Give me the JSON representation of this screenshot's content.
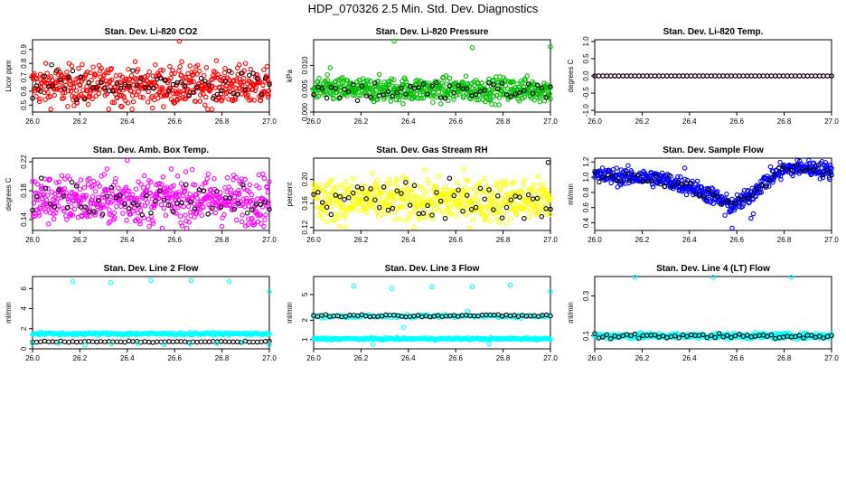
{
  "figure": {
    "title": "HDP_070326  2.5 Min. Std. Dev. Diagnostics"
  },
  "colors": {
    "co2": "#ff0000",
    "pressure": "#00c000",
    "temp": "#ff00ff",
    "box": "#ff00ff",
    "rh": "#ffff00",
    "flow": "#0000ff",
    "line": "#00ffff",
    "overlay": "#000000"
  },
  "chart_data": [
    {
      "type": "scatter",
      "title": "Stan. Dev. Li-820 CO2",
      "ylabel": "Licor ppm",
      "xlim": [
        26.0,
        27.0
      ],
      "ylim": [
        0.45,
        0.97
      ],
      "xticks": [
        "26.0",
        "26.2",
        "26.4",
        "26.6",
        "26.8",
        "27.0"
      ],
      "yticks": [
        {
          "v": 0.5,
          "label": "0.5"
        },
        {
          "v": 0.6,
          "label": "0.6"
        },
        {
          "v": 0.7,
          "label": "0.7"
        },
        {
          "v": 0.8,
          "label": "0.8"
        },
        {
          "v": 0.9,
          "label": "0.9"
        }
      ],
      "series": [
        {
          "name": "main",
          "color_key": "co2",
          "style": "noise",
          "n": 520,
          "center": 0.64,
          "spread": 0.07,
          "min": 0.47,
          "max": 0.88,
          "points": [
            {
              "x": 26.62,
              "y": 0.96
            }
          ]
        },
        {
          "name": "overlay",
          "color_key": "overlay",
          "style": "noise",
          "n": 60,
          "center": 0.64,
          "spread": 0.05,
          "min": 0.52,
          "max": 0.8,
          "points": [
            {
              "x": 26.08,
              "y": 0.79
            }
          ]
        }
      ]
    },
    {
      "type": "scatter",
      "title": "Stan. Dev. Li-820 Pressure",
      "ylabel": "kPa",
      "xlim": [
        26.0,
        27.0
      ],
      "ylim": [
        0.0,
        0.0155
      ],
      "xticks": [
        "26.0",
        "26.2",
        "26.4",
        "26.6",
        "26.8",
        "27.0"
      ],
      "yticks": [
        {
          "v": 0.0,
          "label": "0.000"
        },
        {
          "v": 0.005,
          "label": "0.005"
        },
        {
          "v": 0.01,
          "label": "0.010"
        }
      ],
      "series": [
        {
          "name": "main",
          "color_key": "pressure",
          "style": "noise",
          "n": 520,
          "center": 0.0048,
          "spread": 0.0013,
          "min": 0.0003,
          "max": 0.0085,
          "points": [
            {
              "x": 26.34,
              "y": 0.0152
            },
            {
              "x": 26.67,
              "y": 0.0138
            },
            {
              "x": 27.0,
              "y": 0.014
            },
            {
              "x": 26.07,
              "y": 0.0095
            }
          ]
        },
        {
          "name": "overlay",
          "color_key": "overlay",
          "style": "noise",
          "n": 55,
          "center": 0.0045,
          "spread": 0.0012,
          "min": 0.0005,
          "max": 0.0075,
          "points": []
        }
      ]
    },
    {
      "type": "scatter",
      "title": "Stan. Dev. Li-820 Temp.",
      "ylabel": "degrees C",
      "xlim": [
        26.0,
        27.0
      ],
      "ylim": [
        -1.05,
        1.05
      ],
      "xticks": [
        "26.0",
        "26.2",
        "26.4",
        "26.6",
        "26.8",
        "27.0"
      ],
      "yticks": [
        {
          "v": -1.0,
          "label": "-1.0"
        },
        {
          "v": -0.5,
          "label": "-0.5"
        },
        {
          "v": 0.0,
          "label": "0.0"
        },
        {
          "v": 0.5,
          "label": "0.5"
        },
        {
          "v": 1.0,
          "label": "1.0"
        }
      ],
      "series": [
        {
          "name": "main",
          "color_key": "temp",
          "style": "flat",
          "n": 60,
          "center": 0.0,
          "spread": 0,
          "min": 0,
          "max": 0,
          "points": []
        },
        {
          "name": "overlay",
          "color_key": "overlay",
          "style": "flat",
          "n": 60,
          "center": 0.0,
          "spread": 0,
          "min": 0,
          "max": 0,
          "points": []
        }
      ]
    },
    {
      "type": "scatter",
      "title": "Stan. Dev. Amb. Box Temp.",
      "ylabel": "degrees C",
      "xlim": [
        26.0,
        27.0
      ],
      "ylim": [
        0.125,
        0.225
      ],
      "xticks": [
        "26.0",
        "26.2",
        "26.4",
        "26.6",
        "26.8",
        "27.0"
      ],
      "yticks": [
        {
          "v": 0.14,
          "label": "0.14"
        },
        {
          "v": 0.18,
          "label": "0.18"
        },
        {
          "v": 0.22,
          "label": "0.22"
        }
      ],
      "series": [
        {
          "name": "main",
          "color_key": "box",
          "style": "noise",
          "n": 520,
          "center": 0.168,
          "spread": 0.017,
          "min": 0.128,
          "max": 0.21,
          "points": [
            {
              "x": 26.4,
              "y": 0.222
            }
          ]
        },
        {
          "name": "overlay",
          "color_key": "overlay",
          "style": "noise",
          "n": 55,
          "center": 0.17,
          "spread": 0.013,
          "min": 0.14,
          "max": 0.2,
          "points": []
        }
      ]
    },
    {
      "type": "scatter",
      "title": "Stan. Dev. Gas Stream RH",
      "ylabel": "percent",
      "xlim": [
        26.0,
        27.0
      ],
      "ylim": [
        0.115,
        0.235
      ],
      "xticks": [
        "26.0",
        "26.2",
        "26.4",
        "26.6",
        "26.8",
        "27.0"
      ],
      "yticks": [
        {
          "v": 0.12,
          "label": "0.12"
        },
        {
          "v": 0.16,
          "label": "0.16"
        },
        {
          "v": 0.2,
          "label": "0.20"
        }
      ],
      "series": [
        {
          "name": "main",
          "color_key": "rh",
          "style": "noise",
          "n": 520,
          "center": 0.165,
          "spread": 0.018,
          "min": 0.12,
          "max": 0.225,
          "points": []
        },
        {
          "name": "overlay",
          "color_key": "overlay",
          "style": "noise",
          "n": 55,
          "center": 0.168,
          "spread": 0.017,
          "min": 0.135,
          "max": 0.205,
          "points": [
            {
              "x": 26.99,
              "y": 0.228
            }
          ]
        }
      ]
    },
    {
      "type": "scatter",
      "title": "Stan. Dev. Sample Flow",
      "ylabel": "ml/min",
      "xlim": [
        26.0,
        27.0
      ],
      "ylim": [
        0.3,
        1.25
      ],
      "xticks": [
        "26.0",
        "26.2",
        "26.4",
        "26.6",
        "26.8",
        "27.0"
      ],
      "yticks": [
        {
          "v": 0.4,
          "label": "0.4"
        },
        {
          "v": 0.6,
          "label": "0.6"
        },
        {
          "v": 0.8,
          "label": "0.8"
        },
        {
          "v": 1.0,
          "label": "1.0"
        },
        {
          "v": 1.2,
          "label": "1.2"
        }
      ],
      "trend": [
        [
          26.0,
          1.02
        ],
        [
          26.25,
          0.99
        ],
        [
          26.4,
          0.88
        ],
        [
          26.5,
          0.75
        ],
        [
          26.58,
          0.62
        ],
        [
          26.64,
          0.72
        ],
        [
          26.72,
          0.95
        ],
        [
          26.8,
          1.1
        ],
        [
          26.88,
          1.13
        ],
        [
          27.0,
          1.08
        ]
      ],
      "series": [
        {
          "name": "main",
          "color_key": "flow",
          "style": "trend",
          "n": 520,
          "center": 0,
          "spread": 0.055,
          "min": 0.3,
          "max": 1.22,
          "points": [
            {
              "x": 26.58,
              "y": 0.33
            },
            {
              "x": 26.66,
              "y": 0.46
            },
            {
              "x": 26.67,
              "y": 0.52
            },
            {
              "x": 26.38,
              "y": 1.12
            },
            {
              "x": 26.55,
              "y": 0.5
            }
          ]
        },
        {
          "name": "overlay",
          "color_key": "overlay",
          "style": "trend",
          "n": 55,
          "center": 0,
          "spread": 0.045,
          "min": 0.45,
          "max": 1.2,
          "points": []
        }
      ]
    },
    {
      "type": "scatter",
      "title": "Stan. Dev. Line 2 Flow",
      "ylabel": "ml/min",
      "xlim": [
        26.0,
        27.0
      ],
      "ylim": [
        0.0,
        7.2
      ],
      "xticks": [
        "26.0",
        "26.2",
        "26.4",
        "26.6",
        "26.8",
        "27.0"
      ],
      "yticks": [
        {
          "v": 0,
          "label": "0"
        },
        {
          "v": 2,
          "label": "2"
        },
        {
          "v": 4,
          "label": "4"
        },
        {
          "v": 6,
          "label": "6"
        }
      ],
      "series": [
        {
          "name": "main",
          "color_key": "line",
          "style": "band",
          "n": 240,
          "center": 1.5,
          "spread": 0.06,
          "min": 1.3,
          "max": 1.7,
          "points": [
            {
              "x": 26.17,
              "y": 6.7
            },
            {
              "x": 26.33,
              "y": 6.6
            },
            {
              "x": 26.5,
              "y": 6.8
            },
            {
              "x": 26.67,
              "y": 6.8
            },
            {
              "x": 26.83,
              "y": 6.7
            },
            {
              "x": 27.0,
              "y": 5.7
            }
          ]
        },
        {
          "name": "overlay",
          "color_key": "overlay",
          "style": "band",
          "n": 60,
          "center": 0.7,
          "spread": 0.03,
          "min": 0.6,
          "max": 0.8,
          "points": []
        },
        {
          "name": "main-low",
          "color_key": "line",
          "style": "band",
          "n": 10,
          "center": 0.5,
          "spread": 0.1,
          "min": 0.3,
          "max": 0.7,
          "points": []
        }
      ]
    },
    {
      "type": "scatter",
      "title": "Stan. Dev. Line 3 Flow",
      "ylabel": "ml/min",
      "xlim": [
        26.0,
        27.0
      ],
      "ylim": [
        0.72,
        9.5
      ],
      "yscale": "log",
      "xticks": [
        "26.0",
        "26.2",
        "26.4",
        "26.6",
        "26.8",
        "27.0"
      ],
      "yticks": [
        {
          "v": 1,
          "label": "1"
        },
        {
          "v": 2,
          "label": "2"
        },
        {
          "v": 5,
          "label": "5"
        }
      ],
      "series": [
        {
          "name": "main",
          "color_key": "line",
          "style": "band",
          "n": 240,
          "center": 1.03,
          "spread": 0.02,
          "min": 0.98,
          "max": 1.08,
          "points": [
            {
              "x": 26.17,
              "y": 6.8
            },
            {
              "x": 26.33,
              "y": 6.2
            },
            {
              "x": 26.5,
              "y": 6.6
            },
            {
              "x": 26.67,
              "y": 6.6
            },
            {
              "x": 26.83,
              "y": 7.0
            },
            {
              "x": 27.0,
              "y": 5.6
            },
            {
              "x": 26.25,
              "y": 0.85
            },
            {
              "x": 26.74,
              "y": 0.86
            },
            {
              "x": 26.65,
              "y": 2.75
            },
            {
              "x": 26.38,
              "y": 1.55
            }
          ]
        },
        {
          "name": "main-mid",
          "color_key": "line",
          "style": "band",
          "n": 120,
          "center": 2.3,
          "spread": 0.06,
          "min": 2.1,
          "max": 2.5,
          "points": []
        },
        {
          "name": "overlay",
          "color_key": "overlay",
          "style": "band",
          "n": 60,
          "center": 2.35,
          "spread": 0.05,
          "min": 2.15,
          "max": 2.6,
          "points": []
        }
      ]
    },
    {
      "type": "scatter",
      "title": "Stan. Dev. Line 4 (LT) Flow",
      "ylabel": "ml/min",
      "xlim": [
        26.0,
        27.0
      ],
      "ylim": [
        0.07,
        0.51
      ],
      "yscale": "log",
      "xticks": [
        "26.0",
        "26.2",
        "26.4",
        "26.6",
        "26.8",
        "27.0"
      ],
      "yticks": [
        {
          "v": 0.1,
          "label": "0.1"
        },
        {
          "v": 0.3,
          "label": "0.3"
        }
      ],
      "series": [
        {
          "name": "main",
          "color_key": "line",
          "style": "band",
          "n": 360,
          "center": 0.1,
          "spread": 0.004,
          "min": 0.09,
          "max": 0.112,
          "points": [
            {
              "x": 26.17,
              "y": 0.5
            },
            {
              "x": 26.5,
              "y": 0.5
            },
            {
              "x": 26.83,
              "y": 0.5
            }
          ]
        },
        {
          "name": "overlay",
          "color_key": "overlay",
          "style": "band",
          "n": 60,
          "center": 0.1,
          "spread": 0.004,
          "min": 0.092,
          "max": 0.11,
          "points": []
        }
      ]
    }
  ]
}
